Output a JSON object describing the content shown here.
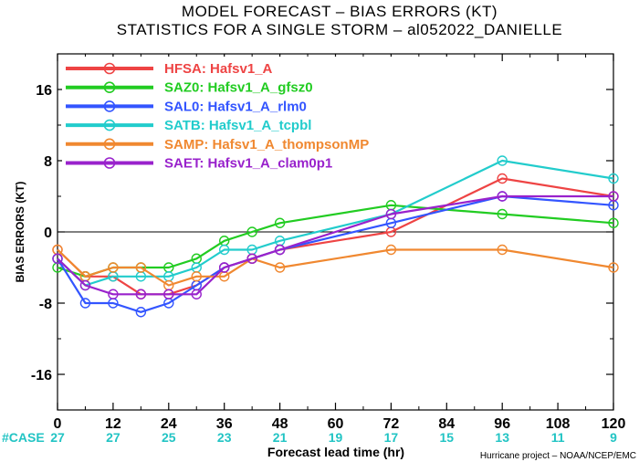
{
  "title_line1": "MODEL FORECAST – BIAS ERRORS (KT)",
  "title_line2": "STATISTICS FOR A SINGLE STORM – al052022_DANIELLE",
  "credit": "Hurricane project – NOAA/NCEP/EMC",
  "chart_data": {
    "type": "line",
    "xlabel": "Forecast lead time (hr)",
    "ylabel": "BIAS ERRORS (KT)",
    "xlim": [
      0,
      120
    ],
    "ylim": [
      -20,
      20
    ],
    "x_ticks": [
      "0",
      "12",
      "24",
      "36",
      "48",
      "60",
      "72",
      "84",
      "96",
      "108",
      "120"
    ],
    "y_ticks": [
      "16",
      "8",
      "0",
      "-8",
      "-16"
    ],
    "case_label": "#CASE",
    "cases": [
      "27",
      "27",
      "25",
      "23",
      "21",
      "19",
      "17",
      "15",
      "13",
      "11",
      "9"
    ],
    "series": [
      {
        "name": "HFSA: Hafsv1_A",
        "color": "#ee4444",
        "x": [
          0,
          6,
          12,
          18,
          24,
          30,
          36,
          42,
          48,
          72,
          96,
          120
        ],
        "y": [
          -2,
          -5,
          -5,
          -7,
          -7,
          -6,
          -4,
          -3,
          -2,
          0,
          6,
          4
        ]
      },
      {
        "name": "SAZ0: Hafsv1_A_gfsz0",
        "color": "#22cc22",
        "x": [
          0,
          6,
          12,
          18,
          24,
          30,
          36,
          42,
          48,
          72,
          96,
          120
        ],
        "y": [
          -4,
          -5,
          -4,
          -4,
          -4,
          -3,
          -1,
          0,
          1,
          3,
          2,
          1
        ]
      },
      {
        "name": "SAL0: Hafsv1_A_rlm0",
        "color": "#3355ff",
        "x": [
          0,
          6,
          12,
          18,
          24,
          30,
          36,
          42,
          48,
          72,
          96,
          120
        ],
        "y": [
          -3,
          -8,
          -8,
          -9,
          -8,
          -6,
          -4,
          -3,
          -2,
          1,
          4,
          3
        ]
      },
      {
        "name": "SATB: Hafsv1_A_tcpbl",
        "color": "#22cccc",
        "x": [
          0,
          6,
          12,
          18,
          24,
          30,
          36,
          42,
          48,
          72,
          96,
          120
        ],
        "y": [
          -3,
          -6,
          -5,
          -5,
          -5,
          -4,
          -2,
          -2,
          -1,
          2,
          8,
          6
        ]
      },
      {
        "name": "SAMP: Hafsv1_A_thompsonMP",
        "color": "#f08830",
        "x": [
          0,
          6,
          12,
          18,
          24,
          30,
          36,
          42,
          48,
          72,
          96,
          120
        ],
        "y": [
          -2,
          -5,
          -4,
          -4,
          -6,
          -5,
          -5,
          -3,
          -4,
          -2,
          -2,
          -4
        ]
      },
      {
        "name": "SAET: Hafsv1_A_clam0p1",
        "color": "#9922cc",
        "x": [
          0,
          6,
          12,
          18,
          24,
          30,
          36,
          42,
          48,
          72,
          96,
          120
        ],
        "y": [
          -3,
          -6,
          -7,
          -7,
          -7,
          -7,
          -4,
          -3,
          -2,
          2,
          4,
          4
        ]
      }
    ]
  }
}
